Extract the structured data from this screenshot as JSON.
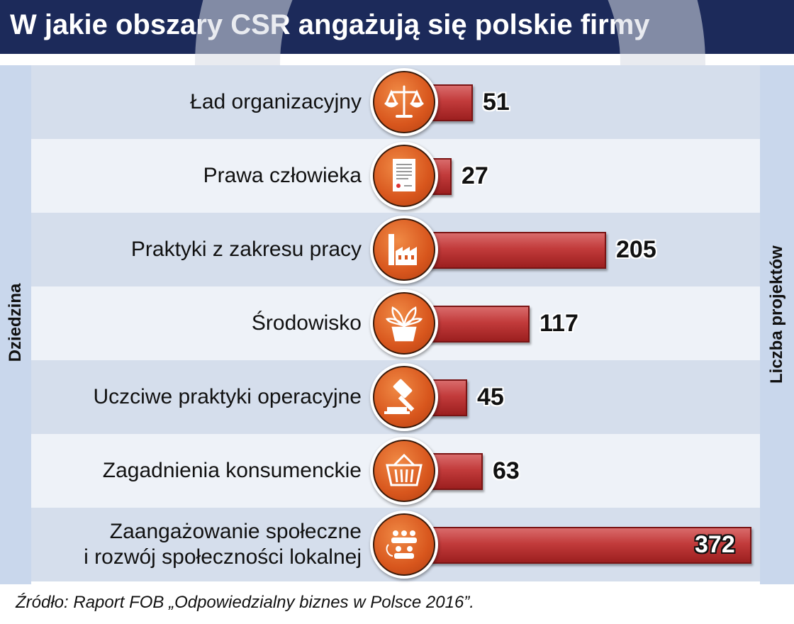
{
  "header": {
    "title": "W jakie obszary CSR angażują się polskie firmy"
  },
  "axes": {
    "y_label": "Dziedzina",
    "x_label": "Liczba projektów"
  },
  "footer": {
    "source": "Źródło: Raport FOB „Odpowiedzialny biznes w Polsce 2016”."
  },
  "colors": {
    "header_bg": "#1c2a5a",
    "bar": "#c23b3b",
    "icon_circle": "#d8561d",
    "row_band_dark": "#d5deec",
    "row_band_light": "#eef2f8"
  },
  "chart_data": {
    "type": "bar",
    "orientation": "horizontal",
    "title": "W jakie obszary CSR angażują się polskie firmy",
    "xlabel": "Liczba projektów",
    "ylabel": "Dziedzina",
    "categories": [
      "Ład organizacyjny",
      "Prawa człowieka",
      "Praktyki z zakresu pracy",
      "Środowisko",
      "Uczciwe praktyki operacyjne",
      "Zagadnienia konsumenckie",
      "Zaangażowanie społeczne i rozwój społeczności lokalnej"
    ],
    "category_lines": [
      [
        "Ład organizacyjny"
      ],
      [
        "Prawa człowieka"
      ],
      [
        "Praktyki z zakresu pracy"
      ],
      [
        "Środowisko"
      ],
      [
        "Uczciwe praktyki operacyjne"
      ],
      [
        "Zagadnienia konsumenckie"
      ],
      [
        "Zaangażowanie społeczne",
        "i rozwój społeczności lokalnej"
      ]
    ],
    "values": [
      51,
      27,
      205,
      117,
      45,
      63,
      372
    ],
    "icons": [
      "scales-icon",
      "document-icon",
      "factory-icon",
      "plant-icon",
      "gavel-icon",
      "basket-icon",
      "community-icon"
    ],
    "xlim": [
      0,
      372
    ],
    "grid": false,
    "legend": "none"
  }
}
